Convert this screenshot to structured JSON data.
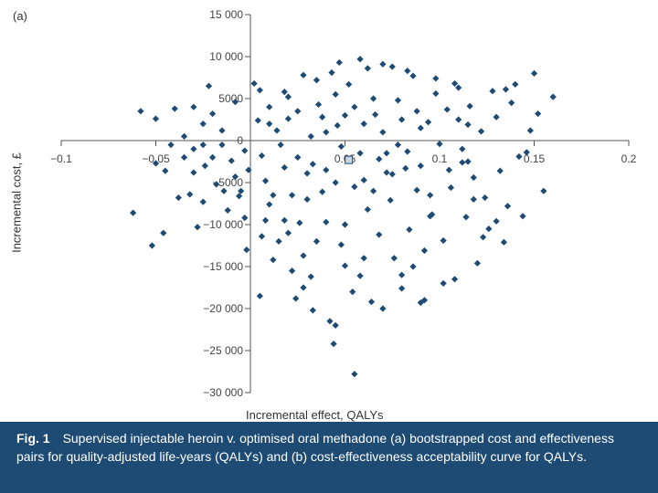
{
  "figure": {
    "panel_label": "(a)",
    "caption_label": "Fig. 1",
    "caption_text": "Supervised injectable heroin v. optimised oral methadone (a) bootstrapped cost and effectiveness pairs for quality-adjusted life-years (QALYs) and (b) cost-effectiveness acceptability curve for QALYs."
  },
  "colors": {
    "points": "#1e4b73",
    "axis": "#555555",
    "caption_bg": "#1e4b73",
    "caption_text": "#ffffff"
  },
  "chart_data": {
    "type": "scatter",
    "xlabel": "Incremental effect, QALYs",
    "ylabel": "Incremental cost, £",
    "xlim": [
      -0.1,
      0.2
    ],
    "ylim": [
      -30000,
      15000
    ],
    "x_ticks": [
      -0.1,
      -0.05,
      0,
      0.05,
      0.1,
      0.15,
      0.2
    ],
    "x_tick_labels": [
      "−0.1",
      "−0.05",
      "0",
      "0.05",
      "0.1",
      "0.15",
      "0.2"
    ],
    "y_ticks": [
      15000,
      10000,
      5000,
      0,
      -5000,
      -10000,
      -15000,
      -20000,
      -25000,
      -30000
    ],
    "y_tick_labels": [
      "15 000",
      "10 000",
      "5000",
      "0",
      "−5000",
      "−10 000",
      "−15 000",
      "−20 000",
      "−25 000",
      "−30 000"
    ],
    "grid": false,
    "legend": "none",
    "mean_point": {
      "x": 0.052,
      "y": -2300
    },
    "series": [
      {
        "points": [
          [
            -0.058,
            3500
          ],
          [
            -0.05,
            2600
          ],
          [
            -0.05,
            -2700
          ],
          [
            -0.045,
            -3600
          ],
          [
            -0.062,
            -8600
          ],
          [
            -0.052,
            -12500
          ],
          [
            -0.046,
            -11000
          ],
          [
            -0.04,
            3800
          ],
          [
            -0.035,
            500
          ],
          [
            -0.03,
            -1000
          ],
          [
            -0.032,
            -6400
          ],
          [
            -0.028,
            -10300
          ],
          [
            -0.02,
            3200
          ],
          [
            -0.015,
            1200
          ],
          [
            -0.01,
            -2400
          ],
          [
            -0.005,
            -6000
          ],
          [
            -0.018,
            -5200
          ],
          [
            -0.012,
            -8300
          ],
          [
            -0.022,
            6500
          ],
          [
            -0.008,
            -4300
          ],
          [
            -0.003,
            -9200
          ],
          [
            -0.008,
            4600
          ],
          [
            -0.003,
            -1200
          ],
          [
            -0.015,
            -500
          ],
          [
            -0.002,
            -13000
          ],
          [
            0.002,
            6800
          ],
          [
            -0.001,
            -3500
          ],
          [
            -0.02,
            -2000
          ],
          [
            -0.03,
            -3800
          ],
          [
            -0.025,
            -7300
          ],
          [
            -0.038,
            -6800
          ],
          [
            -0.014,
            -6000
          ],
          [
            -0.006,
            -6600
          ],
          [
            -0.025,
            -500
          ],
          [
            -0.042,
            -500
          ],
          [
            -0.024,
            -3000
          ],
          [
            0.005,
            -18500
          ],
          [
            -0.03,
            4000
          ],
          [
            -0.025,
            2000
          ],
          [
            -0.035,
            -2000
          ],
          [
            0.005,
            6000
          ],
          [
            0.004,
            2400
          ],
          [
            0.006,
            -1800
          ],
          [
            0.008,
            -4800
          ],
          [
            0.01,
            -7600
          ],
          [
            0.006,
            -11400
          ],
          [
            0.012,
            -14200
          ],
          [
            0.014,
            1200
          ],
          [
            0.016,
            -500
          ],
          [
            0.018,
            -3200
          ],
          [
            0.018,
            -9500
          ],
          [
            0.02,
            5200
          ],
          [
            0.022,
            -15500
          ],
          [
            0.024,
            -18800
          ],
          [
            0.02,
            2600
          ],
          [
            0.026,
            -9800
          ],
          [
            0.028,
            -13700
          ],
          [
            0.022,
            -6500
          ],
          [
            0.03,
            -3900
          ],
          [
            0.032,
            -16200
          ],
          [
            0.033,
            -20200
          ],
          [
            0.035,
            7200
          ],
          [
            0.036,
            4300
          ],
          [
            0.038,
            -6100
          ],
          [
            0.04,
            -9700
          ],
          [
            0.042,
            -21500
          ],
          [
            0.044,
            -24200
          ],
          [
            0.045,
            -22000
          ],
          [
            0.046,
            1800
          ],
          [
            0.048,
            -12400
          ],
          [
            0.05,
            -14900
          ],
          [
            0.052,
            6700
          ],
          [
            0.054,
            -18000
          ],
          [
            0.055,
            -27800
          ],
          [
            0.058,
            -16100
          ],
          [
            0.06,
            -4700
          ],
          [
            0.062,
            -8200
          ],
          [
            0.064,
            -19200
          ],
          [
            0.066,
            3100
          ],
          [
            0.068,
            -11200
          ],
          [
            0.07,
            9100
          ],
          [
            0.072,
            -1500
          ],
          [
            0.074,
            -7100
          ],
          [
            0.076,
            -14000
          ],
          [
            0.078,
            4800
          ],
          [
            0.08,
            -17600
          ],
          [
            0.082,
            -3300
          ],
          [
            0.084,
            -10600
          ],
          [
            0.086,
            7700
          ],
          [
            0.088,
            -5900
          ],
          [
            0.09,
            -19300
          ],
          [
            0.092,
            -13100
          ],
          [
            0.094,
            2200
          ],
          [
            0.096,
            -8800
          ],
          [
            0.098,
            5600
          ],
          [
            0.1,
            -400
          ],
          [
            0.102,
            -11900
          ],
          [
            0.104,
            3700
          ],
          [
            0.106,
            -5600
          ],
          [
            0.108,
            -16500
          ],
          [
            0.11,
            6300
          ],
          [
            0.112,
            -2600
          ],
          [
            0.114,
            -9100
          ],
          [
            0.116,
            4100
          ],
          [
            0.118,
            -4400
          ],
          [
            0.12,
            -14600
          ],
          [
            0.122,
            1100
          ],
          [
            0.124,
            -6800
          ],
          [
            0.126,
            -10500
          ],
          [
            0.128,
            5900
          ],
          [
            0.13,
            2800
          ],
          [
            0.132,
            -3600
          ],
          [
            0.134,
            -12100
          ],
          [
            0.136,
            -7800
          ],
          [
            0.138,
            4500
          ],
          [
            0.14,
            6700
          ],
          [
            0.142,
            -1900
          ],
          [
            0.144,
            -9000
          ],
          [
            0.148,
            1200
          ],
          [
            0.15,
            8000
          ],
          [
            0.152,
            3200
          ],
          [
            0.155,
            -6000
          ],
          [
            0.16,
            5200
          ],
          [
            0.146,
            -1400
          ],
          [
            0.13,
            -9600
          ],
          [
            0.123,
            -11500
          ],
          [
            0.115,
            1900
          ],
          [
            0.108,
            6800
          ],
          [
            0.135,
            6100
          ],
          [
            0.028,
            7800
          ],
          [
            0.043,
            8100
          ],
          [
            0.058,
            9700
          ],
          [
            0.083,
            8300
          ],
          [
            0.098,
            7400
          ],
          [
            0.062,
            8600
          ],
          [
            0.047,
            9300
          ],
          [
            0.075,
            8800
          ],
          [
            0.025,
            -2000
          ],
          [
            0.033,
            -2800
          ],
          [
            0.048,
            -700
          ],
          [
            0.068,
            -2200
          ],
          [
            0.083,
            -1300
          ],
          [
            0.112,
            -1000
          ],
          [
            0.01,
            4000
          ],
          [
            0.055,
            -5500
          ],
          [
            0.075,
            -4000
          ],
          [
            0.09,
            -3000
          ],
          [
            0.035,
            -12000
          ],
          [
            0.06,
            -14000
          ],
          [
            0.086,
            -15000
          ],
          [
            0.015,
            -12000
          ],
          [
            0.028,
            -17500
          ],
          [
            0.05,
            -10000
          ],
          [
            0.095,
            -9000
          ],
          [
            0.07,
            -20000
          ],
          [
            0.08,
            -16000
          ],
          [
            0.092,
            -19000
          ],
          [
            0.102,
            -17000
          ],
          [
            0.03,
            -7000
          ],
          [
            0.045,
            -5000
          ],
          [
            0.065,
            -6000
          ],
          [
            0.05,
            3000
          ],
          [
            0.06,
            2000
          ],
          [
            0.04,
            1000
          ],
          [
            0.07,
            1000
          ],
          [
            0.08,
            2500
          ],
          [
            0.09,
            1500
          ],
          [
            0.065,
            5000
          ],
          [
            0.055,
            4000
          ],
          [
            0.045,
            5500
          ],
          [
            0.038,
            2800
          ],
          [
            0.025,
            3500
          ],
          [
            0.018,
            5800
          ],
          [
            0.012,
            -6500
          ],
          [
            0.008,
            -9500
          ],
          [
            0.02,
            -11000
          ],
          [
            0.04,
            -3500
          ],
          [
            0.058,
            -1500
          ],
          [
            0.072,
            -3800
          ],
          [
            0.095,
            -6500
          ],
          [
            0.105,
            -3500
          ],
          [
            0.118,
            -7000
          ],
          [
            0.01,
            2000
          ],
          [
            0.032,
            500
          ],
          [
            0.078,
            -500
          ],
          [
            0.088,
            3500
          ],
          [
            0.11,
            2500
          ],
          [
            0.115,
            -2500
          ]
        ]
      }
    ]
  }
}
